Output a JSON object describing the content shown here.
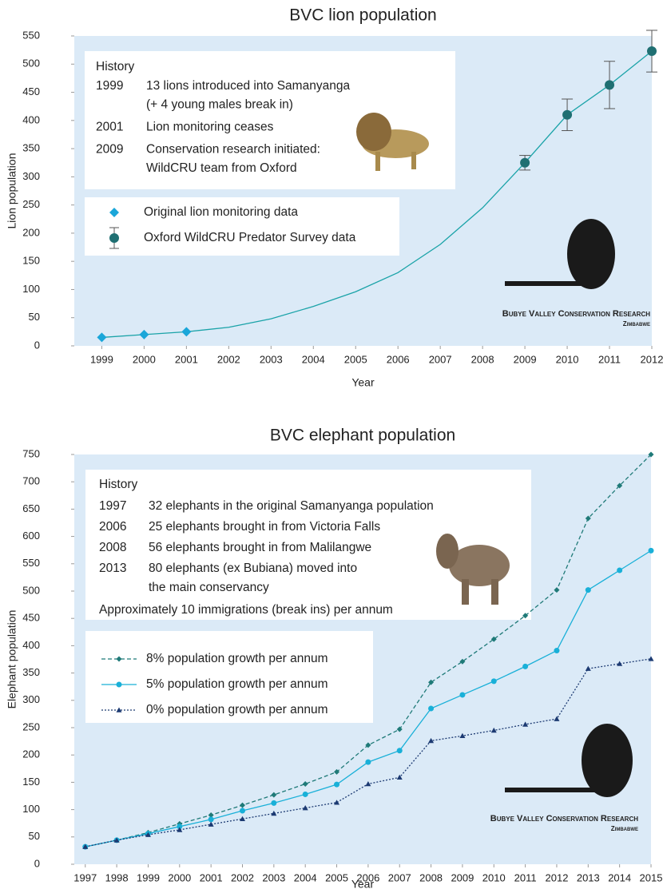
{
  "chart_data": [
    {
      "type": "line",
      "title": "BVC lion population",
      "x_label": "Year",
      "y_label": "Lion population",
      "x": [
        1999,
        2000,
        2001,
        2002,
        2003,
        2004,
        2005,
        2006,
        2007,
        2008,
        2009,
        2010,
        2011,
        2012
      ],
      "xlim": [
        1998.35,
        2012
      ],
      "xticks": [
        1999,
        2000,
        2001,
        2002,
        2003,
        2004,
        2005,
        2006,
        2007,
        2008,
        2009,
        2010,
        2011,
        2012
      ],
      "ylim": [
        0,
        550
      ],
      "yticks": [
        0,
        50,
        100,
        150,
        200,
        250,
        300,
        350,
        400,
        450,
        500,
        550
      ],
      "grid": false,
      "model_line": {
        "color": "#1aa3a8",
        "values": [
          15,
          20,
          25,
          33,
          48,
          70,
          96,
          130,
          180,
          245,
          325,
          410,
          463,
          523
        ]
      },
      "series": [
        {
          "name": "Original lion monitoring data",
          "color": "#1aa6d9",
          "marker": "diamond",
          "line": "none",
          "values": [
            15,
            20,
            25,
            null,
            null,
            null,
            null,
            null,
            null,
            null,
            null,
            null,
            null,
            null
          ]
        },
        {
          "name": "Oxford WildCRU Predator Survey data",
          "color": "#1f6f72",
          "marker": "circle",
          "line": "none",
          "values": [
            null,
            null,
            null,
            null,
            null,
            null,
            null,
            null,
            null,
            null,
            325,
            410,
            463,
            523
          ],
          "errors": [
            null,
            null,
            null,
            null,
            null,
            null,
            null,
            null,
            null,
            null,
            13,
            28,
            42,
            37
          ]
        }
      ],
      "history": {
        "title": "History",
        "entries": [
          {
            "year": "1999",
            "text": [
              "13 lions introduced into Samanyanga",
              "(+ 4 young males break in)"
            ]
          },
          {
            "year": "2001",
            "text": [
              "Lion monitoring ceases"
            ]
          },
          {
            "year": "2009",
            "text": [
              "Conservation research initiated:",
              "WildCRU team from Oxford"
            ]
          }
        ]
      },
      "credit": {
        "name": "Bubye Valley Conservation Research",
        "country": "Zimbabwe"
      }
    },
    {
      "type": "line",
      "title": "BVC elephant population",
      "x_label": "Year",
      "y_label": "Elephant population",
      "x": [
        1997,
        1998,
        1999,
        2000,
        2001,
        2002,
        2003,
        2004,
        2005,
        2006,
        2007,
        2008,
        2009,
        2010,
        2011,
        2012,
        2013,
        2014,
        2015
      ],
      "xlim": [
        1996.65,
        2015
      ],
      "xticks": [
        1997,
        1998,
        1999,
        2000,
        2001,
        2002,
        2003,
        2004,
        2005,
        2006,
        2007,
        2008,
        2009,
        2010,
        2011,
        2012,
        2013,
        2014,
        2015
      ],
      "ylim": [
        0,
        750
      ],
      "yticks": [
        0,
        50,
        100,
        150,
        200,
        250,
        300,
        350,
        400,
        450,
        500,
        550,
        600,
        650,
        700,
        750
      ],
      "grid": false,
      "series": [
        {
          "name": "8% population growth per annum",
          "color": "#1f7a78",
          "marker": "diamond",
          "line": "dashed",
          "values": [
            32,
            44,
            58,
            74,
            90,
            108,
            127,
            147,
            169,
            218,
            247,
            333,
            371,
            412,
            455,
            502,
            633,
            693,
            750
          ]
        },
        {
          "name": "5% population growth per annum",
          "color": "#19b0d8",
          "marker": "circle",
          "line": "solid",
          "values": [
            32,
            44,
            56,
            69,
            82,
            98,
            112,
            128,
            146,
            187,
            208,
            285,
            310,
            335,
            362,
            391,
            502,
            538,
            574
          ]
        },
        {
          "name": "0% population growth per annum",
          "color": "#1c3a72",
          "marker": "triangle",
          "line": "dotted",
          "values": [
            32,
            44,
            54,
            63,
            73,
            83,
            93,
            103,
            113,
            147,
            159,
            226,
            235,
            245,
            256,
            266,
            358,
            367,
            376
          ]
        }
      ],
      "history": {
        "title": "History",
        "entries": [
          {
            "year": "1997",
            "text": [
              "32 elephants in the original Samanyanga population"
            ]
          },
          {
            "year": "2006",
            "text": [
              "25 elephants brought in from Victoria Falls"
            ]
          },
          {
            "year": "2008",
            "text": [
              "56 elephants brought in from Malilangwe"
            ]
          },
          {
            "year": "2013",
            "text": [
              "80 elephants (ex Bubiana) moved into",
              "the main conservancy"
            ]
          }
        ],
        "note": "Approximately 10 immigrations (break ins) per annum"
      },
      "credit": {
        "name": "Bubye Valley Conservation Research",
        "country": "Zimbabwe"
      }
    }
  ]
}
